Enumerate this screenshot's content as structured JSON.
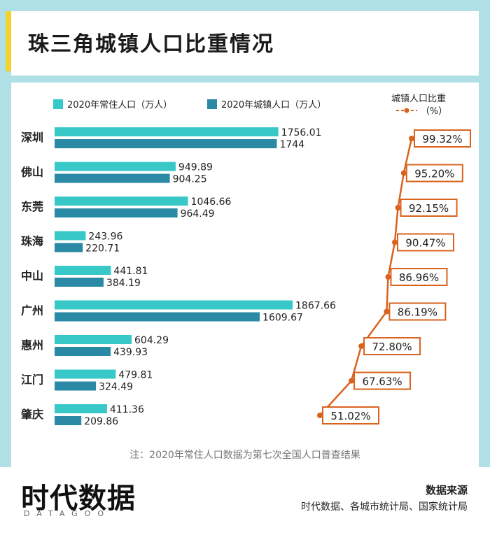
{
  "title": "珠三角城镇人口比重情况",
  "legend": {
    "series1": "2020年常住人口（万人）",
    "series2": "2020年城镇人口（万人）",
    "ratio_title": "城镇人口比重",
    "ratio_unit": "（%）"
  },
  "colors": {
    "resident": "#39c8c8",
    "urban": "#2a8aa5",
    "ratio_line": "#d9631e",
    "frame": "#aee0e6",
    "accent": "#f2d22c"
  },
  "chart_data": {
    "type": "bar",
    "orientation": "horizontal",
    "categories": [
      "深圳",
      "佛山",
      "东莞",
      "珠海",
      "中山",
      "广州",
      "惠州",
      "江门",
      "肇庆"
    ],
    "series": [
      {
        "name": "2020年常住人口（万人）",
        "values": [
          1756.01,
          949.89,
          1046.66,
          243.96,
          441.81,
          1867.66,
          604.29,
          479.81,
          411.36
        ]
      },
      {
        "name": "2020年城镇人口（万人）",
        "values": [
          1744,
          904.25,
          964.49,
          220.71,
          384.19,
          1609.67,
          439.93,
          324.49,
          209.86
        ]
      }
    ],
    "value_labels": {
      "resident": [
        "1756.01",
        "949.89",
        "1046.66",
        "243.96",
        "441.81",
        "1867.66",
        "604.29",
        "479.81",
        "411.36"
      ],
      "urban": [
        "1744",
        "904.25",
        "964.49",
        "220.71",
        "384.19",
        "1609.67",
        "439.93",
        "324.49",
        "209.86"
      ]
    },
    "ratio": {
      "name": "城镇人口比重",
      "unit": "%",
      "values": [
        99.32,
        95.2,
        92.15,
        90.47,
        86.96,
        86.19,
        72.8,
        67.63,
        51.02
      ],
      "labels": [
        "99.32%",
        "95.20%",
        "92.15%",
        "90.47%",
        "86.96%",
        "86.19%",
        "72.80%",
        "67.63%",
        "51.02%"
      ],
      "range": [
        51.02,
        99.32
      ]
    },
    "xlim": [
      0,
      1867.66
    ]
  },
  "note": "注：2020年常住人口数据为第七次全国人口普查结果",
  "footer": {
    "logo": "时代数据",
    "logo_sub": "DATAGOO",
    "source_title": "数据来源",
    "source_text": "时代数据、各城市统计局、国家统计局"
  }
}
